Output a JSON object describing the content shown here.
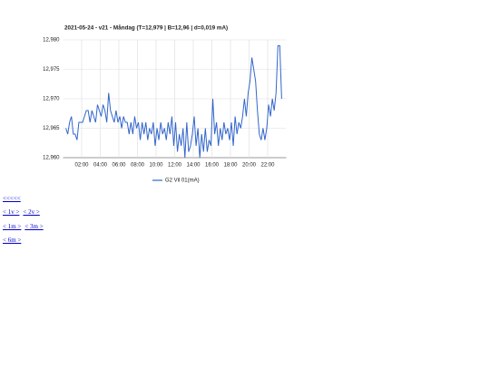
{
  "chart_data": {
    "type": "line",
    "title": "2021-05-24 - v21 - Måndag (T=12,979 | B=12,96 | d=0,019 mA)",
    "x": [
      0.3,
      0.5,
      0.7,
      0.9,
      1.1,
      1.3,
      1.5,
      1.7,
      1.9,
      2.1,
      2.3,
      2.5,
      2.7,
      2.9,
      3.1,
      3.3,
      3.5,
      3.7,
      3.9,
      4.1,
      4.3,
      4.5,
      4.7,
      4.9,
      5.1,
      5.3,
      5.5,
      5.7,
      5.9,
      6.1,
      6.3,
      6.5,
      6.7,
      6.9,
      7.1,
      7.3,
      7.5,
      7.7,
      7.9,
      8.1,
      8.3,
      8.5,
      8.7,
      8.9,
      9.1,
      9.3,
      9.5,
      9.7,
      9.9,
      10.1,
      10.3,
      10.5,
      10.7,
      10.9,
      11.1,
      11.3,
      11.5,
      11.7,
      11.9,
      12.1,
      12.3,
      12.5,
      12.7,
      12.9,
      13.1,
      13.3,
      13.5,
      13.7,
      13.9,
      14.1,
      14.3,
      14.5,
      14.7,
      14.9,
      15.1,
      15.3,
      15.5,
      15.7,
      15.9,
      16.1,
      16.3,
      16.5,
      16.7,
      16.9,
      17.1,
      17.3,
      17.5,
      17.7,
      17.9,
      18.1,
      18.3,
      18.5,
      18.7,
      18.9,
      19.1,
      19.3,
      19.5,
      19.7,
      19.9,
      20.1,
      20.3,
      20.5,
      20.7,
      20.9,
      21.1,
      21.3,
      21.5,
      21.7,
      21.9,
      22.1,
      22.3,
      22.5,
      22.7,
      22.9,
      23.1,
      23.3,
      23.5
    ],
    "series": [
      {
        "name": "G2 Vil 01(mA)",
        "color": "#3366cc",
        "values": [
          12.965,
          12.964,
          12.966,
          12.967,
          12.964,
          12.964,
          12.963,
          12.966,
          12.966,
          12.966,
          12.967,
          12.968,
          12.968,
          12.966,
          12.968,
          12.967,
          12.966,
          12.969,
          12.968,
          12.967,
          12.969,
          12.968,
          12.966,
          12.971,
          12.968,
          12.967,
          12.966,
          12.968,
          12.966,
          12.967,
          12.965,
          12.967,
          12.966,
          12.966,
          12.964,
          12.966,
          12.964,
          12.967,
          12.965,
          12.966,
          12.963,
          12.966,
          12.964,
          12.966,
          12.963,
          12.965,
          12.964,
          12.966,
          12.962,
          12.965,
          12.963,
          12.966,
          12.964,
          12.965,
          12.963,
          12.966,
          12.964,
          12.967,
          12.962,
          12.966,
          12.961,
          12.964,
          12.962,
          12.965,
          12.96,
          12.966,
          12.961,
          12.962,
          12.964,
          12.967,
          12.962,
          12.965,
          12.96,
          12.964,
          12.961,
          12.965,
          12.961,
          12.963,
          12.962,
          12.97,
          12.964,
          12.966,
          12.962,
          12.965,
          12.963,
          12.966,
          12.964,
          12.965,
          12.963,
          12.966,
          12.962,
          12.967,
          12.964,
          12.966,
          12.965,
          12.967,
          12.97,
          12.967,
          12.971,
          12.973,
          12.977,
          12.975,
          12.973,
          12.968,
          12.964,
          12.963,
          12.965,
          12.963,
          12.965,
          12.969,
          12.967,
          12.97,
          12.968,
          12.971,
          12.979,
          12.979,
          12.97
        ]
      }
    ],
    "xlim": [
      0,
      24
    ],
    "xticks": [
      {
        "value": 2,
        "label": "02:00"
      },
      {
        "value": 4,
        "label": "04:00"
      },
      {
        "value": 6,
        "label": "06:00"
      },
      {
        "value": 8,
        "label": "08:00"
      },
      {
        "value": 10,
        "label": "10:00"
      },
      {
        "value": 12,
        "label": "12:00"
      },
      {
        "value": 14,
        "label": "14:00"
      },
      {
        "value": 16,
        "label": "16:00"
      },
      {
        "value": 18,
        "label": "18:00"
      },
      {
        "value": 20,
        "label": "20:00"
      },
      {
        "value": 22,
        "label": "22:00"
      }
    ],
    "ylim": [
      12.96,
      12.98
    ],
    "yticks": [
      {
        "value": 12.96,
        "label": "12,960"
      },
      {
        "value": 12.965,
        "label": "12,965"
      },
      {
        "value": 12.97,
        "label": "12,970"
      },
      {
        "value": 12.975,
        "label": "12,975"
      },
      {
        "value": 12.98,
        "label": "12,980"
      }
    ],
    "grid": true,
    "legend": "bottom"
  },
  "links": [
    [
      "<<<<<"
    ],
    [
      "< 1v >",
      "< 2v >"
    ],
    [
      "< 1m >",
      "< 3m >"
    ],
    [
      "< 6m >"
    ]
  ]
}
